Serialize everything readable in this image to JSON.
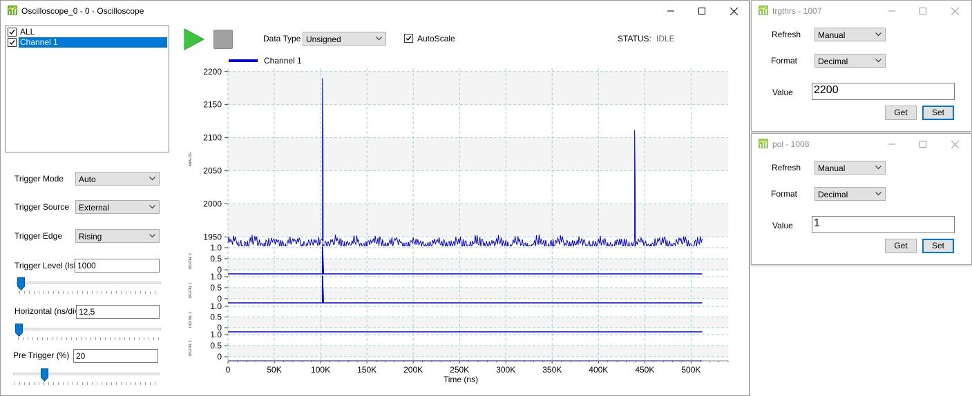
{
  "main_window": {
    "title": "Oscilloscope_0 - 0 - Oscilloscope",
    "channels": [
      {
        "label": "ALL",
        "checked": true,
        "selected": false
      },
      {
        "label": "Channel 1",
        "checked": true,
        "selected": true
      }
    ],
    "toolbar": {
      "data_type_label": "Data Type",
      "data_type_value": "Unsigned",
      "autoscale_label": "AutoScale",
      "autoscale_checked": true,
      "status_label": "STATUS:",
      "status_value": "IDLE"
    },
    "trigger": {
      "mode_label": "Trigger Mode",
      "mode_value": "Auto",
      "source_label": "Trigger Source",
      "source_value": "External",
      "edge_label": "Trigger Edge",
      "edge_value": "Rising",
      "level_label": "Trigger Level (lsb)",
      "level_value": "1000",
      "horizontal_label": "Horizontal (ns/div)",
      "horizontal_value": "12,5",
      "pretrigger_label": "Pre Trigger (%)",
      "pretrigger_value": "20"
    }
  },
  "windows": [
    {
      "title": "trgthrs - 1007",
      "refresh_label": "Refresh",
      "refresh_value": "Manual",
      "format_label": "Format",
      "format_value": "Decimal",
      "value_label": "Value",
      "value": "2200",
      "get_label": "Get",
      "set_label": "Set"
    },
    {
      "title": "pol - 1008",
      "refresh_label": "Refresh",
      "refresh_value": "Manual",
      "format_label": "Format",
      "format_value": "Decimal",
      "value_label": "Value",
      "value": "1",
      "get_label": "Get",
      "set_label": "Set"
    }
  ],
  "colors": {
    "trace": "#0000dd",
    "accent": "#0078d7",
    "play": "#3cc43c",
    "stop": "#a0a0a0",
    "grid": "#9ed2d2"
  },
  "chart_data": {
    "type": "line",
    "legend": "Channel 1",
    "xlabel": "Time (ns)",
    "x_ticks": [
      "0",
      "50K",
      "100K",
      "150K",
      "200K",
      "250K",
      "300K",
      "350K",
      "400K",
      "450K",
      "500K"
    ],
    "xlim": [
      0,
      540000
    ],
    "x_end": 512000,
    "analog": {
      "side_label": "ANALOG",
      "y_ticks": [
        "2200",
        "2150",
        "2100",
        "2050",
        "2000",
        "1950"
      ],
      "ylim": [
        1940,
        2205
      ],
      "baseline": 1945,
      "noise_amplitude": 7,
      "spikes": [
        {
          "x": 102000,
          "y": 2190
        },
        {
          "x": 439000,
          "y": 2112
        }
      ]
    },
    "digital": [
      {
        "side_label": "DIGITAL 0",
        "y_ticks": [
          "1.0",
          "0.5",
          "0"
        ],
        "pulses": [
          102000
        ]
      },
      {
        "side_label": "DIGITAL 1",
        "y_ticks": [
          "1.0",
          "0.5",
          "0"
        ],
        "pulses": [
          102000
        ]
      },
      {
        "side_label": "DIGITAL 2",
        "y_ticks": [
          "1.0",
          "0.5",
          "0"
        ],
        "pulses": []
      },
      {
        "side_label": "DIGITAL 3",
        "y_ticks": [
          "1.0",
          "0.5",
          "0"
        ],
        "pulses": []
      }
    ]
  }
}
